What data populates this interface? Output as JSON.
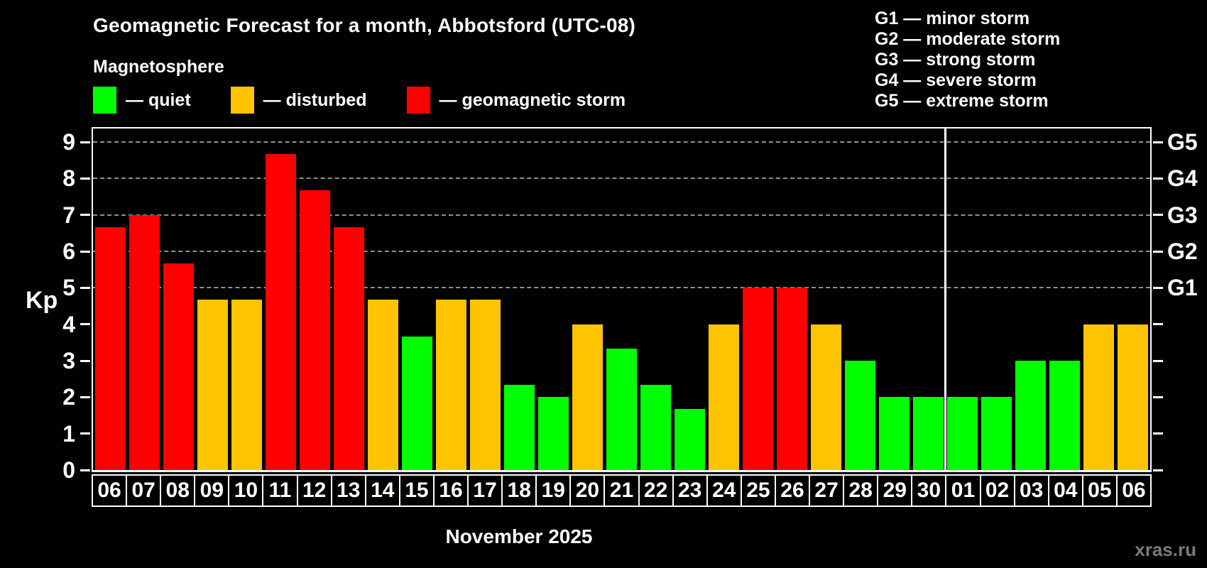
{
  "title": "Geomagnetic Forecast for a month, Abbotsford (UTC-08)",
  "subtitle": "Magnetosphere",
  "legend": {
    "items": [
      {
        "status": "quiet",
        "label": "— quiet"
      },
      {
        "status": "disturbed",
        "label": "— disturbed"
      },
      {
        "status": "storm",
        "label": "— geomagnetic storm"
      }
    ]
  },
  "g_scale_legend": [
    "G1 — minor storm",
    "G2 — moderate storm",
    "G3 — strong storm",
    "G4 — severe storm",
    "G5 — extreme storm"
  ],
  "colors": {
    "quiet": "#00ff00",
    "disturbed": "#ffc400",
    "storm": "#ff0000",
    "grid": "#aaaaaa",
    "axis": "#ffffff",
    "background": "#000000",
    "watermark": "#7a7a7a"
  },
  "axes": {
    "y_label": "Kp",
    "y_ticks": [
      0,
      1,
      2,
      3,
      4,
      5,
      6,
      7,
      8,
      9
    ],
    "grid_levels": [
      5,
      6,
      7,
      8,
      9
    ],
    "right_scale": [
      {
        "kp": 5,
        "label": "G1"
      },
      {
        "kp": 6,
        "label": "G2"
      },
      {
        "kp": 7,
        "label": "G3"
      },
      {
        "kp": 8,
        "label": "G4"
      },
      {
        "kp": 9,
        "label": "G5"
      }
    ],
    "month_label": "November 2025"
  },
  "watermark": "xras.ru",
  "chart_data": {
    "type": "bar",
    "title": "Geomagnetic Forecast for a month, Abbotsford (UTC-08)",
    "ylabel": "Kp",
    "ylim": [
      0,
      9.37
    ],
    "grid": "dashed horizontal lines at Kp 5,6,7,8,9 (G1–G5 levels)",
    "legend_position": "top-left",
    "categories": [
      "06",
      "07",
      "08",
      "09",
      "10",
      "11",
      "12",
      "13",
      "14",
      "15",
      "16",
      "17",
      "18",
      "19",
      "20",
      "21",
      "22",
      "23",
      "24",
      "25",
      "26",
      "27",
      "28",
      "29",
      "30",
      "01",
      "02",
      "03",
      "04",
      "05",
      "06"
    ],
    "values": [
      6.67,
      7.0,
      5.67,
      4.67,
      4.67,
      8.67,
      7.67,
      6.67,
      4.67,
      3.67,
      4.67,
      4.67,
      2.33,
      2.0,
      4.0,
      3.33,
      2.33,
      1.67,
      4.0,
      5.0,
      5.0,
      4.0,
      3.0,
      2.0,
      2.0,
      2.0,
      2.0,
      3.0,
      3.0,
      4.0,
      4.0
    ],
    "statuses": [
      "storm",
      "storm",
      "storm",
      "disturbed",
      "disturbed",
      "storm",
      "storm",
      "storm",
      "disturbed",
      "quiet",
      "disturbed",
      "disturbed",
      "quiet",
      "quiet",
      "disturbed",
      "quiet",
      "quiet",
      "quiet",
      "disturbed",
      "storm",
      "storm",
      "disturbed",
      "quiet",
      "quiet",
      "quiet",
      "quiet",
      "quiet",
      "quiet",
      "quiet",
      "disturbed",
      "disturbed"
    ],
    "month_separator_after_index": 24
  }
}
